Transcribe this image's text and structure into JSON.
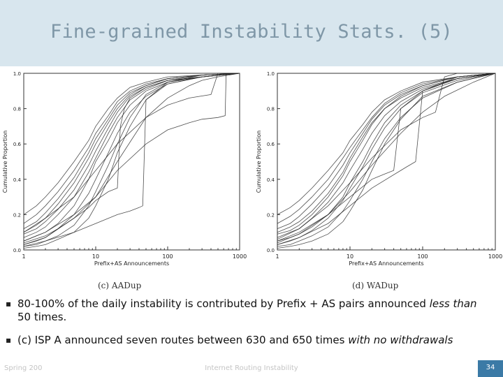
{
  "slide": {
    "title": "Fine-grained Instability Stats. (5)",
    "footer_left": "Spring 200",
    "footer_center": "Internet Routing Instability",
    "page_number": "34"
  },
  "bullets": [
    {
      "marker": "▪",
      "parts": [
        {
          "text": "80-100% of the daily instability is contributed by Prefix + AS pairs announced ",
          "italic": false
        },
        {
          "text": "less than",
          "italic": true
        },
        {
          "text": " 50 times.",
          "italic": false
        }
      ]
    },
    {
      "marker": "▪",
      "parts": [
        {
          "text": "(c) ISP A announced seven routes between 630 and 650 times ",
          "italic": false
        },
        {
          "text": "with no withdrawals",
          "italic": true
        }
      ]
    }
  ],
  "chart_data": [
    {
      "type": "line",
      "caption": "(c) AADup",
      "xlabel": "Prefix+AS Announcements",
      "ylabel": "Cumulative Proportion",
      "xscale": "log",
      "xlim": [
        1,
        1000
      ],
      "ylim": [
        0,
        1
      ],
      "xticks": [
        "1",
        "10",
        "100",
        "1000"
      ],
      "yticks": [
        "0.0",
        "0.2",
        "0.4",
        "0.6",
        "0.8",
        "1.0"
      ],
      "grid": false,
      "series": [
        {
          "x": [
            1,
            1.5,
            2,
            3,
            5,
            8,
            10,
            15,
            20,
            30,
            50,
            100,
            300,
            1000
          ],
          "y": [
            0.05,
            0.08,
            0.1,
            0.15,
            0.25,
            0.4,
            0.5,
            0.62,
            0.72,
            0.82,
            0.9,
            0.95,
            0.98,
            1.0
          ]
        },
        {
          "x": [
            1,
            1.5,
            2,
            3,
            5,
            8,
            10,
            15,
            20,
            30,
            50,
            100,
            300,
            1000
          ],
          "y": [
            0.1,
            0.14,
            0.18,
            0.26,
            0.38,
            0.52,
            0.6,
            0.72,
            0.8,
            0.88,
            0.93,
            0.97,
            0.99,
            1.0
          ]
        },
        {
          "x": [
            1,
            1.5,
            2,
            3,
            5,
            8,
            10,
            15,
            20,
            30,
            50,
            100,
            300,
            1000
          ],
          "y": [
            0.02,
            0.03,
            0.05,
            0.08,
            0.14,
            0.25,
            0.33,
            0.48,
            0.6,
            0.75,
            0.88,
            0.95,
            0.98,
            1.0
          ]
        },
        {
          "x": [
            1,
            1.5,
            2,
            3,
            5,
            8,
            10,
            15,
            20,
            30,
            50,
            100,
            300,
            1000
          ],
          "y": [
            0.15,
            0.2,
            0.25,
            0.33,
            0.45,
            0.58,
            0.66,
            0.76,
            0.84,
            0.9,
            0.94,
            0.97,
            0.99,
            1.0
          ]
        },
        {
          "x": [
            1,
            1.5,
            2,
            3,
            5,
            8,
            10,
            15,
            20,
            30,
            50,
            100,
            300,
            1000
          ],
          "y": [
            0.07,
            0.1,
            0.13,
            0.2,
            0.3,
            0.44,
            0.52,
            0.66,
            0.75,
            0.85,
            0.91,
            0.96,
            0.98,
            1.0
          ]
        },
        {
          "x": [
            1,
            1.5,
            2,
            3,
            5,
            8,
            10,
            15,
            20,
            30,
            50,
            100,
            300,
            1000
          ],
          "y": [
            0.2,
            0.25,
            0.3,
            0.38,
            0.5,
            0.62,
            0.7,
            0.8,
            0.86,
            0.92,
            0.95,
            0.98,
            0.99,
            1.0
          ]
        },
        {
          "x": [
            1,
            1.5,
            2,
            3,
            5,
            8,
            10,
            15,
            20,
            30,
            50,
            100,
            300,
            1000
          ],
          "y": [
            0.03,
            0.05,
            0.07,
            0.12,
            0.2,
            0.32,
            0.4,
            0.55,
            0.66,
            0.78,
            0.87,
            0.94,
            0.98,
            1.0
          ]
        },
        {
          "x": [
            1,
            1.5,
            2,
            3,
            5,
            8,
            10,
            15,
            20,
            30,
            50,
            100,
            300,
            1000
          ],
          "y": [
            0.12,
            0.16,
            0.21,
            0.29,
            0.41,
            0.55,
            0.63,
            0.74,
            0.82,
            0.89,
            0.93,
            0.97,
            0.99,
            1.0
          ]
        },
        {
          "x": [
            1,
            1.5,
            2,
            3,
            5,
            8,
            10,
            15,
            20,
            30,
            50,
            100,
            300,
            1000
          ],
          "y": [
            0.01,
            0.02,
            0.03,
            0.06,
            0.1,
            0.18,
            0.25,
            0.4,
            0.55,
            0.7,
            0.85,
            0.94,
            0.98,
            1.0
          ]
        },
        {
          "x": [
            1,
            2,
            3,
            5,
            8,
            10,
            15,
            20,
            22,
            25,
            30,
            50,
            100,
            1000
          ],
          "y": [
            0.04,
            0.08,
            0.12,
            0.18,
            0.24,
            0.28,
            0.33,
            0.35,
            0.7,
            0.8,
            0.86,
            0.92,
            0.96,
            1.0
          ]
        },
        {
          "x": [
            1,
            2,
            5,
            10,
            20,
            30,
            40,
            45,
            50,
            100,
            300,
            1000
          ],
          "y": [
            0.02,
            0.05,
            0.1,
            0.15,
            0.2,
            0.22,
            0.24,
            0.25,
            0.85,
            0.95,
            0.99,
            1.0
          ]
        },
        {
          "x": [
            1,
            1.5,
            2,
            3,
            5,
            8,
            10,
            15,
            20,
            30,
            50,
            100,
            300,
            1000
          ],
          "y": [
            0.09,
            0.12,
            0.16,
            0.23,
            0.34,
            0.48,
            0.56,
            0.69,
            0.78,
            0.87,
            0.92,
            0.96,
            0.99,
            1.0
          ]
        },
        {
          "x": [
            1,
            2,
            5,
            10,
            20,
            50,
            100,
            200,
            300,
            500,
            630,
            650,
            1000
          ],
          "y": [
            0.05,
            0.1,
            0.2,
            0.3,
            0.45,
            0.6,
            0.68,
            0.72,
            0.74,
            0.75,
            0.76,
            1.0,
            1.0
          ]
        },
        {
          "x": [
            1,
            2,
            5,
            10,
            20,
            50,
            100,
            200,
            300,
            500,
            1000
          ],
          "y": [
            0.03,
            0.07,
            0.18,
            0.3,
            0.5,
            0.75,
            0.86,
            0.93,
            0.96,
            0.98,
            1.0
          ]
        },
        {
          "x": [
            1,
            2,
            5,
            10,
            20,
            50,
            100,
            200,
            400,
            500,
            1000
          ],
          "y": [
            0.1,
            0.18,
            0.3,
            0.45,
            0.6,
            0.75,
            0.82,
            0.86,
            0.88,
            1.0,
            1.0
          ]
        }
      ]
    },
    {
      "type": "line",
      "caption": "(d) WADup",
      "xlabel": "Prefix+AS Announcements",
      "ylabel": "Cumulative Proportion",
      "xscale": "log",
      "xlim": [
        1,
        1000
      ],
      "ylim": [
        0,
        1
      ],
      "xticks": [
        "1",
        "10",
        "100",
        "1000"
      ],
      "yticks": [
        "0.0",
        "0.2",
        "0.4",
        "0.6",
        "0.8",
        "1.0"
      ],
      "grid": false,
      "series": [
        {
          "x": [
            1,
            1.5,
            2,
            3,
            5,
            8,
            10,
            15,
            20,
            30,
            50,
            100,
            300,
            1000
          ],
          "y": [
            0.05,
            0.07,
            0.09,
            0.13,
            0.2,
            0.3,
            0.38,
            0.5,
            0.6,
            0.72,
            0.82,
            0.9,
            0.97,
            1.0
          ]
        },
        {
          "x": [
            1,
            1.5,
            2,
            3,
            5,
            8,
            10,
            15,
            20,
            30,
            50,
            100,
            300,
            1000
          ],
          "y": [
            0.1,
            0.13,
            0.16,
            0.22,
            0.32,
            0.44,
            0.52,
            0.64,
            0.72,
            0.8,
            0.87,
            0.93,
            0.98,
            1.0
          ]
        },
        {
          "x": [
            1,
            1.5,
            2,
            3,
            5,
            8,
            10,
            15,
            20,
            30,
            50,
            100,
            300,
            1000
          ],
          "y": [
            0.02,
            0.03,
            0.05,
            0.08,
            0.13,
            0.22,
            0.28,
            0.4,
            0.5,
            0.63,
            0.75,
            0.86,
            0.95,
            1.0
          ]
        },
        {
          "x": [
            1,
            1.5,
            2,
            3,
            5,
            8,
            10,
            15,
            20,
            30,
            50,
            100,
            300,
            1000
          ],
          "y": [
            0.15,
            0.19,
            0.23,
            0.3,
            0.4,
            0.52,
            0.58,
            0.68,
            0.75,
            0.83,
            0.89,
            0.94,
            0.98,
            1.0
          ]
        },
        {
          "x": [
            1,
            1.5,
            2,
            3,
            5,
            8,
            10,
            15,
            20,
            30,
            50,
            100,
            300,
            1000
          ],
          "y": [
            0.07,
            0.1,
            0.12,
            0.18,
            0.27,
            0.38,
            0.45,
            0.57,
            0.66,
            0.76,
            0.84,
            0.91,
            0.97,
            1.0
          ]
        },
        {
          "x": [
            1,
            1.5,
            2,
            3,
            5,
            8,
            10,
            15,
            20,
            30,
            50,
            100,
            300,
            1000
          ],
          "y": [
            0.2,
            0.24,
            0.28,
            0.35,
            0.45,
            0.55,
            0.62,
            0.71,
            0.78,
            0.85,
            0.9,
            0.95,
            0.98,
            1.0
          ]
        },
        {
          "x": [
            1,
            1.5,
            2,
            3,
            5,
            8,
            10,
            15,
            20,
            30,
            50,
            100,
            300,
            1000
          ],
          "y": [
            0.03,
            0.05,
            0.07,
            0.11,
            0.18,
            0.28,
            0.35,
            0.47,
            0.57,
            0.69,
            0.8,
            0.89,
            0.96,
            1.0
          ]
        },
        {
          "x": [
            1,
            1.5,
            2,
            3,
            5,
            8,
            10,
            15,
            20,
            30,
            50,
            100,
            300,
            1000
          ],
          "y": [
            0.12,
            0.15,
            0.19,
            0.26,
            0.36,
            0.48,
            0.55,
            0.66,
            0.74,
            0.82,
            0.88,
            0.93,
            0.98,
            1.0
          ]
        },
        {
          "x": [
            1,
            1.5,
            2,
            3,
            5,
            8,
            10,
            15,
            20,
            30,
            50,
            100,
            300,
            1000
          ],
          "y": [
            0.01,
            0.02,
            0.03,
            0.05,
            0.09,
            0.16,
            0.22,
            0.34,
            0.45,
            0.6,
            0.74,
            0.87,
            0.95,
            1.0
          ]
        },
        {
          "x": [
            1,
            2,
            5,
            10,
            20,
            50,
            60,
            80,
            100,
            300,
            1000
          ],
          "y": [
            0.03,
            0.07,
            0.15,
            0.25,
            0.35,
            0.45,
            0.47,
            0.5,
            0.9,
            0.98,
            1.0
          ]
        },
        {
          "x": [
            1,
            2,
            5,
            10,
            20,
            30,
            40,
            50,
            100,
            300,
            1000
          ],
          "y": [
            0.05,
            0.1,
            0.2,
            0.3,
            0.4,
            0.43,
            0.45,
            0.8,
            0.9,
            0.97,
            1.0
          ]
        },
        {
          "x": [
            1,
            1.5,
            2,
            3,
            5,
            8,
            10,
            15,
            20,
            30,
            50,
            100,
            300,
            1000
          ],
          "y": [
            0.09,
            0.11,
            0.14,
            0.2,
            0.3,
            0.42,
            0.5,
            0.62,
            0.71,
            0.8,
            0.86,
            0.92,
            0.97,
            1.0
          ]
        },
        {
          "x": [
            1,
            2,
            5,
            10,
            20,
            50,
            100,
            150,
            200,
            300,
            1000
          ],
          "y": [
            0.06,
            0.12,
            0.25,
            0.38,
            0.52,
            0.68,
            0.75,
            0.78,
            0.98,
            1.0,
            1.0
          ]
        },
        {
          "x": [
            1,
            2,
            5,
            10,
            20,
            50,
            100,
            200,
            500,
            1000
          ],
          "y": [
            0.04,
            0.09,
            0.2,
            0.33,
            0.48,
            0.66,
            0.78,
            0.87,
            0.95,
            1.0
          ]
        }
      ]
    }
  ]
}
